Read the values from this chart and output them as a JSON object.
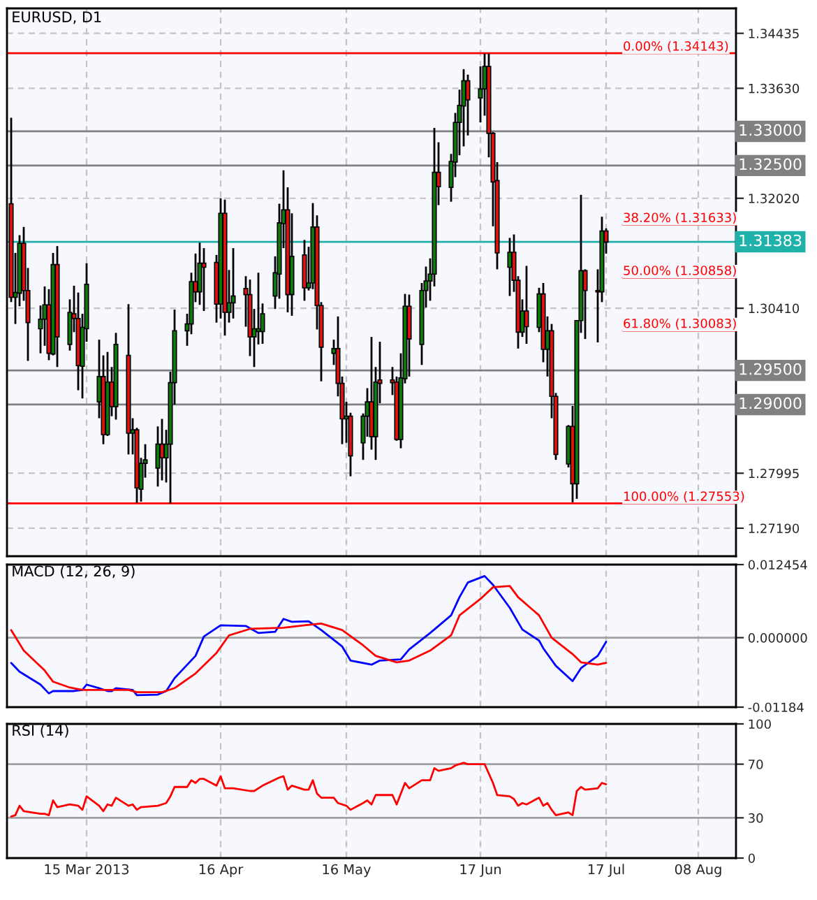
{
  "chart_data": [
    {
      "type": "candlestick",
      "title": "EURUSD, D1",
      "x": [
        "2013-02-25",
        "2013-02-26",
        "2013-02-27",
        "2013-02-28",
        "2013-03-01",
        "2013-03-04",
        "2013-03-05",
        "2013-03-06",
        "2013-03-07",
        "2013-03-08",
        "2013-03-11",
        "2013-03-12",
        "2013-03-13",
        "2013-03-14",
        "2013-03-15",
        "2013-03-18",
        "2013-03-19",
        "2013-03-20",
        "2013-03-21",
        "2013-03-22",
        "2013-03-25",
        "2013-03-26",
        "2013-03-27",
        "2013-03-28",
        "2013-03-29",
        "2013-04-01",
        "2013-04-02",
        "2013-04-03",
        "2013-04-04",
        "2013-04-05",
        "2013-04-08",
        "2013-04-09",
        "2013-04-10",
        "2013-04-11",
        "2013-04-12",
        "2013-04-15",
        "2013-04-16",
        "2013-04-17",
        "2013-04-18",
        "2013-04-19",
        "2013-04-22",
        "2013-04-23",
        "2013-04-24",
        "2013-04-25",
        "2013-04-26",
        "2013-04-29",
        "2013-04-30",
        "2013-05-01",
        "2013-05-02",
        "2013-05-03",
        "2013-05-06",
        "2013-05-07",
        "2013-05-08",
        "2013-05-09",
        "2013-05-10",
        "2013-05-13",
        "2013-05-14",
        "2013-05-15",
        "2013-05-16",
        "2013-05-17",
        "2013-05-20",
        "2013-05-21",
        "2013-05-22",
        "2013-05-23",
        "2013-05-24",
        "2013-05-27",
        "2013-05-28",
        "2013-05-29",
        "2013-05-30",
        "2013-05-31",
        "2013-06-03",
        "2013-06-04",
        "2013-06-05",
        "2013-06-06",
        "2013-06-07",
        "2013-06-10",
        "2013-06-11",
        "2013-06-12",
        "2013-06-13",
        "2013-06-14",
        "2013-06-17",
        "2013-06-18",
        "2013-06-19",
        "2013-06-20",
        "2013-06-21",
        "2013-06-24",
        "2013-06-25",
        "2013-06-26",
        "2013-06-27",
        "2013-06-28",
        "2013-07-01",
        "2013-07-02",
        "2013-07-03",
        "2013-07-04",
        "2013-07-05",
        "2013-07-08",
        "2013-07-09",
        "2013-07-10",
        "2013-07-11",
        "2013-07-12",
        "2013-07-15",
        "2013-07-16",
        "2013-07-17"
      ],
      "ohlc": [
        [
          1.3194,
          1.332,
          1.305,
          1.3057
        ],
        [
          1.3057,
          1.3122,
          1.3018,
          1.3064
        ],
        [
          1.3063,
          1.3148,
          1.3044,
          1.3136
        ],
        [
          1.3136,
          1.316,
          1.3052,
          1.3067
        ],
        [
          1.3067,
          1.31,
          1.2964,
          1.302
        ],
        [
          1.3011,
          1.3045,
          1.2975,
          1.3025
        ],
        [
          1.3025,
          1.3073,
          1.2986,
          1.3046
        ],
        [
          1.3046,
          1.3069,
          1.2965,
          1.2975
        ],
        [
          1.2974,
          1.3122,
          1.2972,
          1.3105
        ],
        [
          1.3105,
          1.3132,
          1.2955,
          1.2999
        ],
        [
          1.2988,
          1.3054,
          1.2979,
          1.3035
        ],
        [
          1.3033,
          1.3074,
          1.3006,
          1.3026
        ],
        [
          1.3026,
          1.3064,
          1.2921,
          1.2957
        ],
        [
          1.2956,
          1.3033,
          1.2909,
          1.3013
        ],
        [
          1.3011,
          1.3107,
          1.2992,
          1.3076
        ],
        [
          1.2904,
          1.2995,
          1.288,
          1.2941
        ],
        [
          1.2941,
          1.2972,
          1.2842,
          1.2856
        ],
        [
          1.2856,
          1.2977,
          1.2854,
          1.2933
        ],
        [
          1.2933,
          1.2955,
          1.2883,
          1.2897
        ],
        [
          1.2897,
          1.3005,
          1.2878,
          1.2988
        ],
        [
          1.2972,
          1.3047,
          1.2827,
          1.2858
        ],
        [
          1.2858,
          1.288,
          1.2827,
          1.2863
        ],
        [
          1.2863,
          1.2866,
          1.2756,
          1.2778
        ],
        [
          1.2776,
          1.2822,
          1.2758,
          1.2814
        ],
        [
          1.2814,
          1.2842,
          1.2793,
          1.2819
        ],
        [
          1.2807,
          1.2868,
          1.278,
          1.2842
        ],
        [
          1.2842,
          1.2879,
          1.2789,
          1.2822
        ],
        [
          1.2822,
          1.2863,
          1.2786,
          1.2842
        ],
        [
          1.2842,
          1.2948,
          1.2755,
          1.2932
        ],
        [
          1.2932,
          1.3039,
          1.29,
          1.3008
        ],
        [
          1.3008,
          1.3033,
          1.2986,
          1.3018
        ],
        [
          1.3018,
          1.3093,
          1.3003,
          1.308
        ],
        [
          1.308,
          1.3121,
          1.305,
          1.3065
        ],
        [
          1.3065,
          1.3137,
          1.3046,
          1.3107
        ],
        [
          1.3107,
          1.3129,
          1.3037,
          1.3101
        ],
        [
          1.3108,
          1.3119,
          1.302,
          1.3047
        ],
        [
          1.3047,
          1.3202,
          1.3026,
          1.318
        ],
        [
          1.318,
          1.32,
          1.3001,
          1.3035
        ],
        [
          1.3035,
          1.3097,
          1.302,
          1.3049
        ],
        [
          1.3049,
          1.3129,
          1.3026,
          1.3059
        ],
        [
          1.307,
          1.3088,
          1.3014,
          1.3061
        ],
        [
          1.3061,
          1.3083,
          1.2971,
          1.2999
        ],
        [
          1.2999,
          1.304,
          1.2955,
          1.3011
        ],
        [
          1.3007,
          1.3093,
          1.2988,
          1.3011
        ],
        [
          1.3007,
          1.3048,
          1.2989,
          1.3033
        ],
        [
          1.3059,
          1.3117,
          1.304,
          1.3093
        ],
        [
          1.3091,
          1.3194,
          1.3055,
          1.3166
        ],
        [
          1.3165,
          1.3243,
          1.3129,
          1.3185
        ],
        [
          1.3185,
          1.3218,
          1.3035,
          1.3061
        ],
        [
          1.3061,
          1.318,
          1.303,
          1.3117
        ],
        [
          1.3119,
          1.3141,
          1.3052,
          1.3071
        ],
        [
          1.3071,
          1.3131,
          1.3067,
          1.3078
        ],
        [
          1.3078,
          1.3195,
          1.3069,
          1.316
        ],
        [
          1.316,
          1.3177,
          1.301,
          1.3045
        ],
        [
          1.3045,
          1.305,
          1.2934,
          1.2984
        ],
        [
          1.2975,
          1.2995,
          1.2958,
          1.2982
        ],
        [
          1.2982,
          1.3029,
          1.2912,
          1.2931
        ],
        [
          1.2931,
          1.2941,
          1.2842,
          1.2879
        ],
        [
          1.2879,
          1.2904,
          1.2844,
          1.2883
        ],
        [
          1.2883,
          1.2888,
          1.2795,
          1.2825
        ],
        [
          1.2844,
          1.2887,
          1.2819,
          1.2883
        ],
        [
          1.2883,
          1.2924,
          1.2853,
          1.2904
        ],
        [
          1.2904,
          1.2999,
          1.2834,
          1.2853
        ],
        [
          1.2853,
          1.2955,
          1.2819,
          1.2933
        ],
        [
          1.2936,
          1.2992,
          1.2902,
          1.2931
        ],
        [
          1.2936,
          1.2955,
          1.2914,
          1.2932
        ],
        [
          1.2933,
          1.2941,
          1.2847,
          1.2849
        ],
        [
          1.2849,
          1.2975,
          1.2836,
          1.2939
        ],
        [
          1.2938,
          1.3062,
          1.2931,
          1.3044
        ],
        [
          1.3044,
          1.3061,
          1.2941,
          1.2996
        ],
        [
          1.2988,
          1.3078,
          1.2958,
          1.3067
        ],
        [
          1.3067,
          1.3102,
          1.3042,
          1.3081
        ],
        [
          1.3081,
          1.3114,
          1.3052,
          1.3091
        ],
        [
          1.3091,
          1.3305,
          1.3073,
          1.324
        ],
        [
          1.324,
          1.3284,
          1.3192,
          1.3219
        ],
        [
          1.3218,
          1.3267,
          1.3197,
          1.3256
        ],
        [
          1.3255,
          1.3327,
          1.3233,
          1.3313
        ],
        [
          1.3313,
          1.3361,
          1.3265,
          1.3338
        ],
        [
          1.3337,
          1.3391,
          1.3278,
          1.3374
        ],
        [
          1.3374,
          1.3383,
          1.3294,
          1.3346
        ],
        [
          1.3349,
          1.3395,
          1.3313,
          1.3362
        ],
        [
          1.3362,
          1.3414,
          1.3323,
          1.3395
        ],
        [
          1.3395,
          1.3414,
          1.3262,
          1.3297
        ],
        [
          1.3297,
          1.3299,
          1.3161,
          1.3226
        ],
        [
          1.3228,
          1.3255,
          1.3098,
          1.3122
        ],
        [
          1.3101,
          1.3144,
          1.3059,
          1.3123
        ],
        [
          1.3123,
          1.3149,
          1.3065,
          1.3082
        ],
        [
          1.3082,
          1.3088,
          1.2982,
          1.3006
        ],
        [
          1.3006,
          1.3054,
          1.2999,
          1.3037
        ],
        [
          1.3037,
          1.3103,
          1.2989,
          1.3014
        ],
        [
          1.3013,
          1.3071,
          1.3006,
          1.3062
        ],
        [
          1.3062,
          1.3078,
          1.2962,
          1.2981
        ],
        [
          1.2981,
          1.3029,
          1.2941,
          1.3008
        ],
        [
          1.3008,
          1.3018,
          1.288,
          1.2912
        ],
        [
          1.2912,
          1.2917,
          1.2819,
          1.2827
        ],
        [
          1.2813,
          1.287,
          1.2808,
          1.2868
        ],
        [
          1.2868,
          1.2898,
          1.2757,
          1.2784
        ],
        [
          1.2784,
          1.3023,
          1.2762,
          1.3023
        ],
        [
          1.3023,
          1.3207,
          1.3005,
          1.3096
        ],
        [
          1.3096,
          1.3098,
          1.2996,
          1.3067
        ],
        [
          1.3067,
          1.3098,
          1.2991,
          1.3065
        ],
        [
          1.3065,
          1.3175,
          1.305,
          1.3154
        ],
        [
          1.3154,
          1.3158,
          1.3121,
          1.3138
        ]
      ],
      "series": [
        {
          "type": "line",
          "color": "#ff0000",
          "x": [
            "2013-07-21",
            "2013-08-17"
          ],
          "values": [
            1.31633,
            1.31633
          ]
        },
        {
          "type": "line",
          "color": "#ff0000",
          "x": [
            "2013-07-21",
            "2013-08-17"
          ],
          "values": [
            1.30858,
            1.30858
          ]
        },
        {
          "type": "line",
          "color": "#ff0000",
          "x": [
            "2013-07-21",
            "2013-08-17"
          ],
          "values": [
            1.30083,
            1.30083
          ]
        }
      ],
      "xlim": [
        "2013-02-24",
        "2013-08-17"
      ],
      "xticks": [
        {
          "value": "2013-03-15",
          "label": null
        },
        {
          "value": "2013-04-16",
          "label": null
        },
        {
          "value": "2013-05-16",
          "label": null
        },
        {
          "value": "2013-06-17",
          "label": null
        },
        {
          "value": "2013-07-17",
          "label": null
        },
        {
          "value": "2013-08-08",
          "label": null
        }
      ],
      "ylim": [
        1.2678,
        1.348
      ],
      "yticks": [
        {
          "value": 1.34435,
          "label": "1.34435"
        },
        {
          "value": 1.3363,
          "label": "1.33630"
        },
        {
          "value": 1.3202,
          "label": "1.32020"
        },
        {
          "value": 1.3041,
          "label": "1.30410"
        },
        {
          "value": 1.27995,
          "label": "1.27995"
        },
        {
          "value": 1.2719,
          "label": "1.27190"
        }
      ],
      "grid": true,
      "tick_labels": "y",
      "ref_lines": [
        {
          "axis": "y",
          "value": 1.34143,
          "color": "#ff0000"
        },
        {
          "axis": "y",
          "value": 1.27553,
          "color": "#ff0000"
        },
        {
          "axis": "y",
          "value": 1.33,
          "label": "1.33000",
          "color": "#808080"
        },
        {
          "axis": "y",
          "value": 1.325,
          "label": "1.32500",
          "color": "#808080"
        },
        {
          "axis": "y",
          "value": 1.295,
          "label": "1.29500",
          "color": "#808080"
        },
        {
          "axis": "y",
          "value": 1.29,
          "label": "1.29000",
          "color": "#808080"
        },
        {
          "axis": "y",
          "value": 1.31383,
          "label": "1.31383",
          "color": "#20b2aa"
        }
      ],
      "annotations": [
        {
          "text": "0.00% (1.34143)",
          "x": "2013-07-21",
          "y": 1.34143
        },
        {
          "text": "38.20% (1.31633)",
          "x": "2013-07-21",
          "y": 1.31633
        },
        {
          "text": "50.00% (1.30858)",
          "x": "2013-07-21",
          "y": 1.30858
        },
        {
          "text": "61.80% (1.30083)",
          "x": "2013-07-21",
          "y": 1.30083
        },
        {
          "text": "100.00% (1.27553)",
          "x": "2013-07-21",
          "y": 1.27553
        }
      ]
    },
    {
      "type": "line",
      "title": "MACD (12, 26, 9)",
      "series": [
        {
          "color": "#0000ff",
          "x": [
            "2013-02-25",
            "2013-02-27",
            "2013-03-04",
            "2013-03-06",
            "2013-03-07",
            "2013-03-12",
            "2013-03-14",
            "2013-03-15",
            "2013-03-18",
            "2013-03-20",
            "2013-03-21",
            "2013-03-22",
            "2013-03-26",
            "2013-03-27",
            "2013-04-01",
            "2013-04-03",
            "2013-04-05",
            "2013-04-10",
            "2013-04-12",
            "2013-04-16",
            "2013-04-22",
            "2013-04-25",
            "2013-04-29",
            "2013-05-01",
            "2013-05-03",
            "2013-05-07",
            "2013-05-10",
            "2013-05-15",
            "2013-05-17",
            "2013-05-22",
            "2013-05-24",
            "2013-05-29",
            "2013-05-31",
            "2013-06-05",
            "2013-06-10",
            "2013-06-12",
            "2013-06-14",
            "2013-06-18",
            "2013-06-20",
            "2013-06-24",
            "2013-06-27",
            "2013-07-01",
            "2013-07-02",
            "2013-07-05",
            "2013-07-09",
            "2013-07-11",
            "2013-07-15",
            "2013-07-17"
          ],
          "values": [
            -0.0043,
            -0.0058,
            -0.008,
            -0.0095,
            -0.0091,
            -0.0091,
            -0.0089,
            -0.008,
            -0.0086,
            -0.0091,
            -0.0091,
            -0.0086,
            -0.0089,
            -0.0098,
            -0.0097,
            -0.0091,
            -0.0069,
            -0.0031,
            0.0002,
            0.0021,
            0.002,
            0.0008,
            0.001,
            0.0032,
            0.0027,
            0.0028,
            0.0013,
            -0.0015,
            -0.0039,
            -0.0046,
            -0.0039,
            -0.0037,
            -0.002,
            0.0008,
            0.0038,
            0.0069,
            0.0094,
            0.0105,
            0.009,
            0.0051,
            0.0014,
            -0.0005,
            -0.0018,
            -0.0048,
            -0.0074,
            -0.0052,
            -0.0031,
            -0.0007
          ]
        },
        {
          "color": "#ff0000",
          "x": [
            "2013-02-25",
            "2013-02-28",
            "2013-03-05",
            "2013-03-07",
            "2013-03-11",
            "2013-03-14",
            "2013-03-20",
            "2013-03-25",
            "2013-03-27",
            "2013-04-02",
            "2013-04-05",
            "2013-04-10",
            "2013-04-15",
            "2013-04-18",
            "2013-04-23",
            "2013-05-01",
            "2013-05-06",
            "2013-05-10",
            "2013-05-15",
            "2013-05-20",
            "2013-05-23",
            "2013-05-28",
            "2013-05-31",
            "2013-06-05",
            "2013-06-10",
            "2013-06-12",
            "2013-06-17",
            "2013-06-20",
            "2013-06-24",
            "2013-06-26",
            "2013-07-01",
            "2013-07-04",
            "2013-07-09",
            "2013-07-11",
            "2013-07-15",
            "2013-07-17"
          ],
          "values": [
            0.0013,
            -0.0022,
            -0.0056,
            -0.0075,
            -0.0085,
            -0.0089,
            -0.0089,
            -0.0089,
            -0.0093,
            -0.0093,
            -0.0086,
            -0.0061,
            -0.0026,
            0.0004,
            0.0015,
            0.0017,
            0.0021,
            0.0024,
            0.0013,
            -0.0013,
            -0.0031,
            -0.0042,
            -0.0039,
            -0.0022,
            0.0004,
            0.0038,
            0.0066,
            0.0086,
            0.0088,
            0.0069,
            0.0038,
            0,
            -0.0028,
            -0.0042,
            -0.0046,
            -0.0043
          ]
        }
      ],
      "xlim": [
        "2013-02-24",
        "2013-08-17"
      ],
      "xticks": [
        {
          "value": "2013-03-15",
          "label": null
        },
        {
          "value": "2013-04-16",
          "label": null
        },
        {
          "value": "2013-05-16",
          "label": null
        },
        {
          "value": "2013-06-17",
          "label": null
        },
        {
          "value": "2013-07-17",
          "label": null
        },
        {
          "value": "2013-08-08",
          "label": null
        }
      ],
      "ylim": [
        -0.01184,
        0.012454
      ],
      "yticks": [
        {
          "value": 0.012454,
          "label": "0.012454"
        },
        {
          "value": 0,
          "label": "0.000000"
        },
        {
          "value": -0.01184,
          "label": "-0.01184"
        }
      ],
      "grid": "x",
      "tick_labels": "y",
      "ref_lines": [
        {
          "axis": "y",
          "value": 0,
          "color": "#a0a0a0"
        }
      ]
    },
    {
      "type": "line",
      "title": "RSI (14)",
      "series": [
        {
          "color": "#ff0000",
          "x": [
            "2013-02-25",
            "2013-02-26",
            "2013-02-27",
            "2013-02-28",
            "2013-03-04",
            "2013-03-05",
            "2013-03-06",
            "2013-03-07",
            "2013-03-08",
            "2013-03-11",
            "2013-03-13",
            "2013-03-14",
            "2013-03-15",
            "2013-03-18",
            "2013-03-19",
            "2013-03-20",
            "2013-03-21",
            "2013-03-22",
            "2013-03-25",
            "2013-03-26",
            "2013-03-27",
            "2013-03-28",
            "2013-04-01",
            "2013-04-02",
            "2013-04-03",
            "2013-04-04",
            "2013-04-05",
            "2013-04-08",
            "2013-04-09",
            "2013-04-10",
            "2013-04-11",
            "2013-04-12",
            "2013-04-15",
            "2013-04-16",
            "2013-04-17",
            "2013-04-19",
            "2013-04-23",
            "2013-04-24",
            "2013-04-26",
            "2013-04-30",
            "2013-05-01",
            "2013-05-02",
            "2013-05-03",
            "2013-05-06",
            "2013-05-07",
            "2013-05-08",
            "2013-05-09",
            "2013-05-10",
            "2013-05-13",
            "2013-05-14",
            "2013-05-16",
            "2013-05-17",
            "2013-05-20",
            "2013-05-21",
            "2013-05-22",
            "2013-05-23",
            "2013-05-27",
            "2013-05-28",
            "2013-05-29",
            "2013-05-30",
            "2013-05-31",
            "2013-06-03",
            "2013-06-05",
            "2013-06-06",
            "2013-06-07",
            "2013-06-10",
            "2013-06-11",
            "2013-06-13",
            "2013-06-14",
            "2013-06-17",
            "2013-06-18",
            "2013-06-19",
            "2013-06-20",
            "2013-06-21",
            "2013-06-24",
            "2013-06-25",
            "2013-06-26",
            "2013-06-27",
            "2013-06-28",
            "2013-07-01",
            "2013-07-02",
            "2013-07-03",
            "2013-07-04",
            "2013-07-05",
            "2013-07-08",
            "2013-07-09",
            "2013-07-10",
            "2013-07-11",
            "2013-07-12",
            "2013-07-15",
            "2013-07-16",
            "2013-07-17"
          ],
          "values": [
            31,
            32,
            39,
            35,
            33,
            33,
            32,
            43,
            38,
            40,
            39,
            36,
            46,
            39,
            35,
            40,
            39,
            45,
            39,
            40,
            36,
            38,
            39,
            40,
            41,
            46,
            53,
            53,
            58,
            56,
            59,
            59,
            54,
            61,
            52,
            52,
            50,
            50,
            54,
            60,
            61,
            51,
            54,
            51,
            51,
            58,
            48,
            45,
            45,
            41,
            39,
            36,
            41,
            43,
            40,
            47,
            47,
            40,
            48,
            56,
            52,
            58,
            58,
            67,
            65,
            67,
            69,
            71,
            70,
            70,
            70,
            63,
            56,
            47,
            46,
            44,
            39,
            41,
            40,
            45,
            39,
            41,
            36,
            32,
            34,
            32,
            50,
            53,
            51,
            52,
            56,
            55
          ]
        }
      ],
      "xlim": [
        "2013-02-24",
        "2013-08-17"
      ],
      "xticks": [
        {
          "value": "2013-03-15",
          "label": "15 Mar 2013"
        },
        {
          "value": "2013-04-16",
          "label": "16 Apr"
        },
        {
          "value": "2013-05-16",
          "label": "16 May"
        },
        {
          "value": "2013-06-17",
          "label": "17 Jun"
        },
        {
          "value": "2013-07-17",
          "label": "17 Jul"
        },
        {
          "value": "2013-08-08",
          "label": "08 Aug"
        }
      ],
      "ylim": [
        0,
        100
      ],
      "yticks": [
        100,
        70,
        30,
        0
      ],
      "grid": "x",
      "ref_lines": [
        {
          "axis": "y",
          "value": 70,
          "color": "#a0a0a0"
        },
        {
          "axis": "y",
          "value": 30,
          "color": "#a0a0a0"
        }
      ]
    }
  ]
}
